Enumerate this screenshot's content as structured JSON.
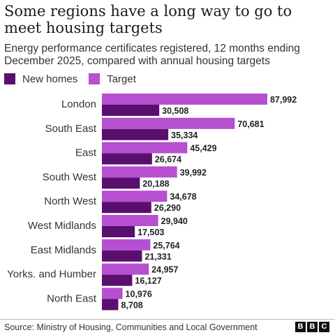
{
  "title": "Some regions have a long way to go to meet housing targets",
  "subtitle": "Energy performance certificates registered, 12 months ending December 2025, compared with annual housing targets",
  "source": "Source: Ministry of Housing, Communities and Local Government",
  "logo_letters": [
    "B",
    "B",
    "C"
  ],
  "colors": {
    "new_homes": "#5a0f6e",
    "target": "#b64fd0"
  },
  "chart_data": {
    "type": "bar",
    "orientation": "horizontal",
    "categories": [
      "London",
      "South East",
      "East",
      "South West",
      "North West",
      "West Midlands",
      "East Midlands",
      "Yorks. and Humber",
      "North East"
    ],
    "series": [
      {
        "name": "Target",
        "values": [
          87992,
          70681,
          45429,
          39992,
          34678,
          29940,
          25764,
          24957,
          10976
        ],
        "labels": [
          "87,992",
          "70,681",
          "45,429",
          "39,992",
          "34,678",
          "29,940",
          "25,764",
          "24,957",
          "10,976"
        ]
      },
      {
        "name": "New homes",
        "values": [
          30508,
          35334,
          26674,
          20188,
          26290,
          17503,
          21331,
          16127,
          8708
        ],
        "labels": [
          "30,508",
          "35,334",
          "26,674",
          "20,188",
          "26,290",
          "17,503",
          "21,331",
          "16,127",
          "8,708"
        ]
      }
    ],
    "legend": [
      "New homes",
      "Target"
    ],
    "legend_position": "top-left",
    "xlim": [
      0,
      88000
    ],
    "grid": false
  }
}
